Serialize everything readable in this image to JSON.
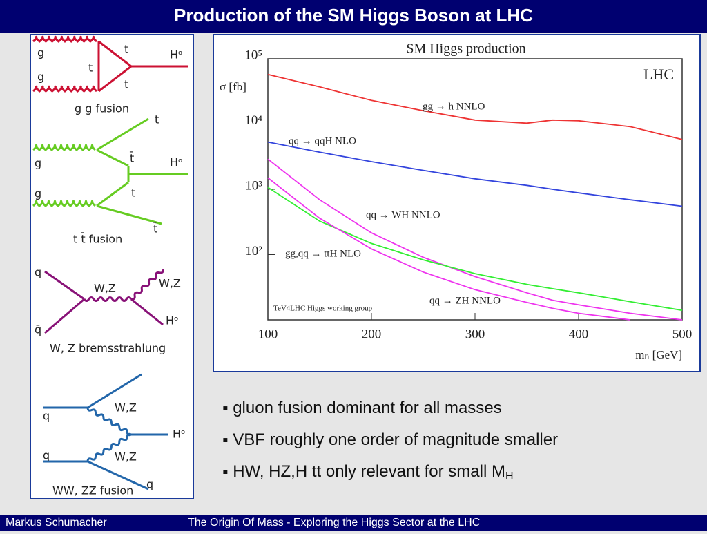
{
  "header": {
    "title": "Production of the  SM Higgs Boson at LHC"
  },
  "diagrams": [
    {
      "caption": "g g fusion",
      "labels": [
        "g",
        "g",
        "t",
        "t",
        "t",
        "Hᵒ"
      ]
    },
    {
      "caption": "t t̄ fusion",
      "labels": [
        "t",
        "t̄",
        "Hᵒ",
        "g",
        "g",
        "t",
        "t̄"
      ]
    },
    {
      "caption": "W, Z bremsstrahlung",
      "labels": [
        "q",
        "q̄",
        "W,Z",
        "W,Z",
        "Hᵒ"
      ]
    },
    {
      "caption": "WW, ZZ fusion",
      "labels": [
        "q",
        "q",
        "W,Z",
        "W,Z",
        "Hᵒ",
        "q"
      ]
    }
  ],
  "chart_data": {
    "type": "line",
    "title": "SM Higgs production",
    "x_label": "mₕ [GeV]",
    "y_label": "σ [fb]",
    "annotations": [
      "LHC",
      "TeV4LHC Higgs working group"
    ],
    "log_y": true,
    "x": [
      100,
      150,
      200,
      250,
      300,
      350,
      375,
      400,
      450,
      500
    ],
    "series": [
      {
        "name": "gg → h  NNLO",
        "color": "#ee3333",
        "values": [
          57500,
          37000,
          23000,
          16000,
          11500,
          10300,
          11500,
          11200,
          9100,
          5800
        ]
      },
      {
        "name": "qq → qqH  NLO",
        "color": "#3344dd",
        "values": [
          5300,
          3700,
          2650,
          1950,
          1450,
          1150,
          1000,
          880,
          690,
          550
        ]
      },
      {
        "name": "qq → WH  NNLO",
        "color": "#ee33ee",
        "values": [
          2900,
          690,
          215,
          91,
          46,
          26,
          20,
          17,
          12.6,
          10
        ]
      },
      {
        "name": "gg,qq → ttH  NLO",
        "color": "#33ee33",
        "values": [
          1070,
          325,
          148,
          83,
          51,
          35,
          30,
          26,
          19,
          14
        ]
      },
      {
        "name": "qq → ZH  NNLO",
        "color": "#ee33ee",
        "values": [
          1500,
          360,
          122,
          54,
          29,
          18.5,
          15,
          12.6,
          10,
          null
        ]
      }
    ],
    "xlim": [
      100,
      500
    ],
    "xticks": [
      100,
      200,
      300,
      400,
      500
    ],
    "ylim": [
      10,
      100000
    ],
    "yticks": [
      {
        "value": 100,
        "label": "10²"
      },
      {
        "value": 1000,
        "label": "10³"
      },
      {
        "value": 10000,
        "label": "10⁴"
      },
      {
        "value": 100000,
        "label": "10⁵"
      }
    ],
    "grid": false
  },
  "bullets": [
    {
      "text": "gluon fusion dominant for all masses"
    },
    {
      "text": "VBF roughly one order of magnitude smaller"
    },
    {
      "text": "HW, HZ,H tt only relevant for small M",
      "sub": "H"
    }
  ],
  "footer": {
    "author": "Markus  Schumacher",
    "talk": "The Origin Of Mass - Exploring the Higgs Sector at the LHC"
  }
}
